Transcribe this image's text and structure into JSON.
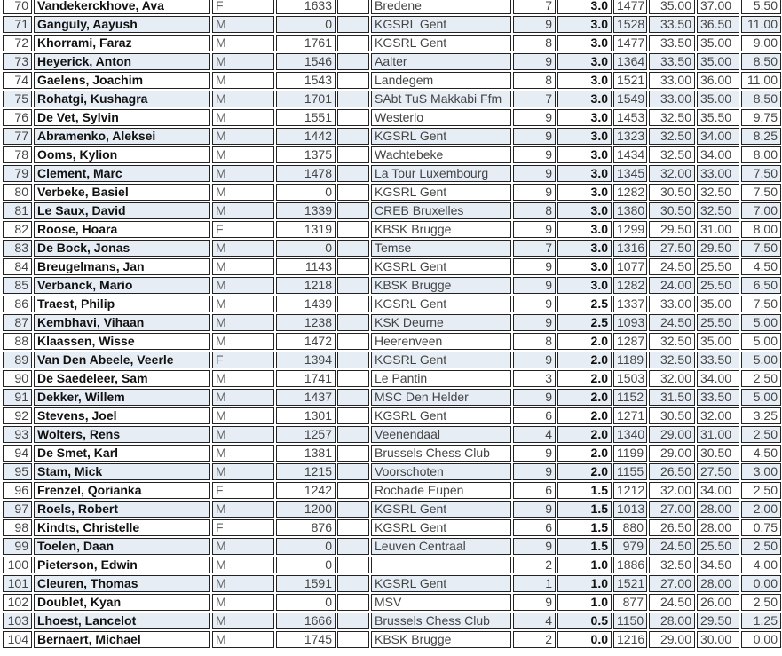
{
  "rows": [
    [
      "70",
      "Vandekerckhove, Ava",
      "F",
      "1633",
      "",
      "Bredene",
      "7",
      "3.0",
      "1477",
      "35.00",
      "37.00",
      "5.50"
    ],
    [
      "71",
      "Ganguly, Aayush",
      "M",
      "0",
      "",
      "KGSRL Gent",
      "9",
      "3.0",
      "1528",
      "33.50",
      "36.50",
      "11.00"
    ],
    [
      "72",
      "Khorrami, Faraz",
      "M",
      "1761",
      "",
      "KGSRL Gent",
      "8",
      "3.0",
      "1477",
      "33.50",
      "35.00",
      "9.00"
    ],
    [
      "73",
      "Heyerick, Anton",
      "M",
      "1546",
      "",
      "Aalter",
      "9",
      "3.0",
      "1364",
      "33.50",
      "35.00",
      "8.50"
    ],
    [
      "74",
      "Gaelens, Joachim",
      "M",
      "1543",
      "",
      "Landegem",
      "8",
      "3.0",
      "1521",
      "33.00",
      "36.00",
      "11.00"
    ],
    [
      "75",
      "Rohatgi, Kushagra",
      "M",
      "1701",
      "",
      "SAbt TuS Makkabi Ffm",
      "7",
      "3.0",
      "1549",
      "33.00",
      "35.00",
      "8.50"
    ],
    [
      "76",
      "De Vet, Sylvin",
      "M",
      "1551",
      "",
      "Westerlo",
      "9",
      "3.0",
      "1453",
      "32.50",
      "35.50",
      "9.75"
    ],
    [
      "77",
      "Abramenko, Aleksei",
      "M",
      "1442",
      "",
      "KGSRL Gent",
      "9",
      "3.0",
      "1323",
      "32.50",
      "34.00",
      "8.25"
    ],
    [
      "78",
      "Ooms, Kylion",
      "M",
      "1375",
      "",
      "Wachtebeke",
      "9",
      "3.0",
      "1434",
      "32.50",
      "34.00",
      "8.00"
    ],
    [
      "79",
      "Clement, Marc",
      "M",
      "1478",
      "",
      "La Tour Luxembourg",
      "9",
      "3.0",
      "1345",
      "32.00",
      "33.00",
      "7.50"
    ],
    [
      "80",
      "Verbeke, Basiel",
      "M",
      "0",
      "",
      "KGSRL Gent",
      "9",
      "3.0",
      "1282",
      "30.50",
      "32.50",
      "7.50"
    ],
    [
      "81",
      "Le Saux, David",
      "M",
      "1339",
      "",
      "CREB Bruxelles",
      "8",
      "3.0",
      "1380",
      "30.50",
      "32.50",
      "7.00"
    ],
    [
      "82",
      "Roose, Hoara",
      "F",
      "1319",
      "",
      "KBSK Brugge",
      "9",
      "3.0",
      "1299",
      "29.50",
      "31.00",
      "8.00"
    ],
    [
      "83",
      "De Bock, Jonas",
      "M",
      "0",
      "",
      "Temse",
      "7",
      "3.0",
      "1316",
      "27.50",
      "29.50",
      "7.50"
    ],
    [
      "84",
      "Breugelmans, Jan",
      "M",
      "1143",
      "",
      "KGSRL Gent",
      "9",
      "3.0",
      "1077",
      "24.50",
      "25.50",
      "4.50"
    ],
    [
      "85",
      "Verbanck, Mario",
      "M",
      "1218",
      "",
      "KBSK Brugge",
      "9",
      "3.0",
      "1282",
      "24.00",
      "25.50",
      "6.50"
    ],
    [
      "86",
      "Traest, Philip",
      "M",
      "1439",
      "",
      "KGSRL Gent",
      "9",
      "2.5",
      "1337",
      "33.00",
      "35.00",
      "7.50"
    ],
    [
      "87",
      "Kembhavi, Vihaan",
      "M",
      "1238",
      "",
      "KSK Deurne",
      "9",
      "2.5",
      "1093",
      "24.50",
      "25.50",
      "5.00"
    ],
    [
      "88",
      "Klaassen, Wisse",
      "M",
      "1472",
      "",
      "Heerenveen",
      "8",
      "2.0",
      "1287",
      "32.50",
      "35.00",
      "5.00"
    ],
    [
      "89",
      "Van Den Abeele, Veerle",
      "F",
      "1394",
      "",
      "KGSRL Gent",
      "9",
      "2.0",
      "1189",
      "32.50",
      "33.50",
      "5.00"
    ],
    [
      "90",
      "De Saedeleer, Sam",
      "M",
      "1741",
      "",
      "Le Pantin",
      "3",
      "2.0",
      "1503",
      "32.00",
      "34.00",
      "2.50"
    ],
    [
      "91",
      "Dekker, Willem",
      "M",
      "1437",
      "",
      "MSC Den Helder",
      "9",
      "2.0",
      "1152",
      "31.50",
      "33.50",
      "5.00"
    ],
    [
      "92",
      "Stevens, Joel",
      "M",
      "1301",
      "",
      "KGSRL Gent",
      "6",
      "2.0",
      "1271",
      "30.50",
      "32.00",
      "3.25"
    ],
    [
      "93",
      "Wolters, Rens",
      "M",
      "1257",
      "",
      "Veenendaal",
      "4",
      "2.0",
      "1340",
      "29.00",
      "31.00",
      "2.50"
    ],
    [
      "94",
      "De Smet, Karl",
      "M",
      "1381",
      "",
      "Brussels Chess Club",
      "9",
      "2.0",
      "1199",
      "29.00",
      "30.50",
      "4.50"
    ],
    [
      "95",
      "Stam, Mick",
      "M",
      "1215",
      "",
      "Voorschoten",
      "9",
      "2.0",
      "1155",
      "26.50",
      "27.50",
      "3.00"
    ],
    [
      "96",
      "Frenzel, Qorianka",
      "F",
      "1242",
      "",
      "Rochade Eupen",
      "6",
      "1.5",
      "1212",
      "32.00",
      "34.00",
      "2.50"
    ],
    [
      "97",
      "Roels, Robert",
      "M",
      "1200",
      "",
      "KGSRL Gent",
      "9",
      "1.5",
      "1013",
      "27.00",
      "28.00",
      "2.00"
    ],
    [
      "98",
      "Kindts, Christelle",
      "F",
      "876",
      "",
      "KGSRL Gent",
      "6",
      "1.5",
      "880",
      "26.50",
      "28.00",
      "0.75"
    ],
    [
      "99",
      "Toelen, Daan",
      "M",
      "0",
      "",
      "Leuven Centraal",
      "9",
      "1.5",
      "979",
      "24.50",
      "25.50",
      "2.50"
    ],
    [
      "100",
      "Pieterson, Edwin",
      "M",
      "0",
      "",
      "",
      "2",
      "1.0",
      "1886",
      "32.50",
      "34.50",
      "4.00"
    ],
    [
      "101",
      "Cleuren, Thomas",
      "M",
      "1591",
      "",
      "KGSRL Gent",
      "1",
      "1.0",
      "1521",
      "27.00",
      "28.00",
      "0.00"
    ],
    [
      "102",
      "Doublet, Kyan",
      "M",
      "0",
      "",
      "MSV",
      "9",
      "1.0",
      "877",
      "24.50",
      "26.00",
      "2.50"
    ],
    [
      "103",
      "Lhoest, Lancelot",
      "M",
      "1666",
      "",
      "Brussels Chess Club",
      "4",
      "0.5",
      "1150",
      "28.00",
      "29.50",
      "1.25"
    ],
    [
      "104",
      "Bernaert, Michael",
      "M",
      "1745",
      "",
      "KBSK Brugge",
      "2",
      "0.0",
      "1216",
      "29.00",
      "30.00",
      "0.00"
    ]
  ],
  "colors": {
    "row_alt_bg": "#e6edf5",
    "border": "#222222"
  }
}
